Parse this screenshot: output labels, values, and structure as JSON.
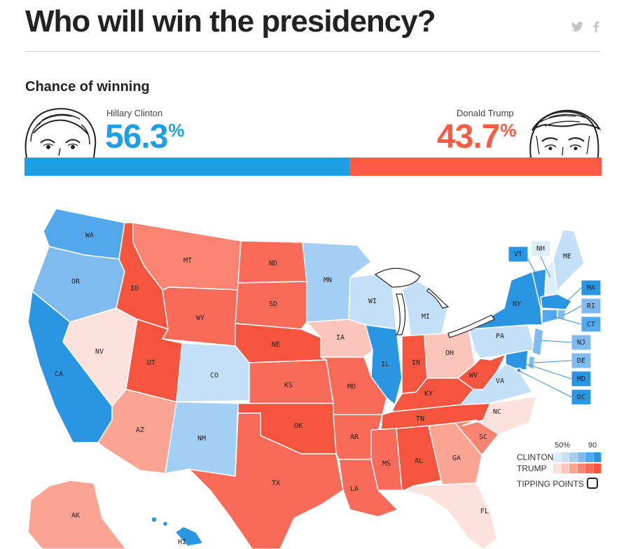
{
  "header": {
    "title": "Who will win the presidency?",
    "twitter_icon": "twitter-icon",
    "facebook_icon": "facebook-icon"
  },
  "chance": {
    "heading": "Chance of winning",
    "clinton": {
      "name": "Hillary Clinton",
      "pct": "56.3",
      "value": 56.3,
      "color": "#1e9fe3"
    },
    "trump": {
      "name": "Donald Trump",
      "pct": "43.7",
      "value": 43.7,
      "color": "#ff5a43"
    },
    "pct_sign": "%"
  },
  "colors": {
    "clinton_scale": [
      "#ddeefb",
      "#c3e0f8",
      "#a3cff4",
      "#7fbbef",
      "#52a8ea",
      "#2a95e3"
    ],
    "trump_scale": [
      "#fde1dc",
      "#fcc5bc",
      "#fba493",
      "#fa8472",
      "#f96a58",
      "#f5543f"
    ]
  },
  "states": [
    {
      "abbr": "WA",
      "tint": "c4"
    },
    {
      "abbr": "OR",
      "tint": "c3"
    },
    {
      "abbr": "CA",
      "tint": "c5"
    },
    {
      "abbr": "NV",
      "tint": "t0"
    },
    {
      "abbr": "ID",
      "tint": "t5"
    },
    {
      "abbr": "MT",
      "tint": "t3"
    },
    {
      "abbr": "WY",
      "tint": "t4"
    },
    {
      "abbr": "UT",
      "tint": "t5"
    },
    {
      "abbr": "CO",
      "tint": "c1"
    },
    {
      "abbr": "AZ",
      "tint": "t2"
    },
    {
      "abbr": "NM",
      "tint": "c2"
    },
    {
      "abbr": "ND",
      "tint": "t4"
    },
    {
      "abbr": "SD",
      "tint": "t4"
    },
    {
      "abbr": "NE",
      "tint": "t5"
    },
    {
      "abbr": "KS",
      "tint": "t4"
    },
    {
      "abbr": "OK",
      "tint": "t5"
    },
    {
      "abbr": "TX",
      "tint": "t4"
    },
    {
      "abbr": "MN",
      "tint": "c2"
    },
    {
      "abbr": "IA",
      "tint": "t1"
    },
    {
      "abbr": "MO",
      "tint": "t4"
    },
    {
      "abbr": "AR",
      "tint": "t4"
    },
    {
      "abbr": "LA",
      "tint": "t4"
    },
    {
      "abbr": "WI",
      "tint": "c1"
    },
    {
      "abbr": "IL",
      "tint": "c5"
    },
    {
      "abbr": "MI",
      "tint": "c1"
    },
    {
      "abbr": "IN",
      "tint": "t5"
    },
    {
      "abbr": "OH",
      "tint": "t1"
    },
    {
      "abbr": "KY",
      "tint": "t5"
    },
    {
      "abbr": "TN",
      "tint": "t5"
    },
    {
      "abbr": "MS",
      "tint": "t4"
    },
    {
      "abbr": "AL",
      "tint": "t5"
    },
    {
      "abbr": "GA",
      "tint": "t2"
    },
    {
      "abbr": "FL",
      "tint": "t0"
    },
    {
      "abbr": "SC",
      "tint": "t3"
    },
    {
      "abbr": "NC",
      "tint": "t0"
    },
    {
      "abbr": "VA",
      "tint": "c1"
    },
    {
      "abbr": "WV",
      "tint": "t5"
    },
    {
      "abbr": "PA",
      "tint": "c1"
    },
    {
      "abbr": "NY",
      "tint": "c5"
    },
    {
      "abbr": "VT",
      "tint": "c5"
    },
    {
      "abbr": "NH",
      "tint": "c0"
    },
    {
      "abbr": "ME",
      "tint": "c1"
    },
    {
      "abbr": "MA",
      "tint": "c5"
    },
    {
      "abbr": "RI",
      "tint": "c3"
    },
    {
      "abbr": "CT",
      "tint": "c4"
    },
    {
      "abbr": "NJ",
      "tint": "c3"
    },
    {
      "abbr": "DE",
      "tint": "c3"
    },
    {
      "abbr": "MD",
      "tint": "c5"
    },
    {
      "abbr": "DC",
      "tint": "c5"
    },
    {
      "abbr": "AK",
      "tint": "t2"
    },
    {
      "abbr": "HI",
      "tint": "c5"
    }
  ],
  "legend": {
    "low": "50%",
    "high": "90",
    "clinton": "CLINTON",
    "trump": "TRUMP",
    "tipping": "TIPPING POINTS"
  }
}
